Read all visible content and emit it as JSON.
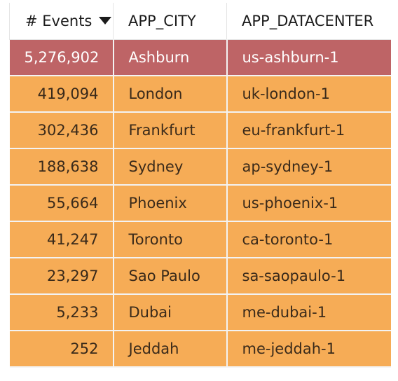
{
  "columns": [
    "# Events",
    "APP_CITY",
    "APP_DATACENTER"
  ],
  "rows": [
    {
      "events": "5,276,902",
      "city": "Ashburn",
      "datacenter": "us-ashburn-1"
    },
    {
      "events": "419,094",
      "city": "London",
      "datacenter": "uk-london-1"
    },
    {
      "events": "302,436",
      "city": "Frankfurt",
      "datacenter": "eu-frankfurt-1"
    },
    {
      "events": "188,638",
      "city": "Sydney",
      "datacenter": "ap-sydney-1"
    },
    {
      "events": "55,664",
      "city": "Phoenix",
      "datacenter": "us-phoenix-1"
    },
    {
      "events": "41,247",
      "city": "Toronto",
      "datacenter": "ca-toronto-1"
    },
    {
      "events": "23,297",
      "city": "Sao Paulo",
      "datacenter": "sa-saopaulo-1"
    },
    {
      "events": "5,233",
      "city": "Dubai",
      "datacenter": "me-dubai-1"
    },
    {
      "events": "252",
      "city": "Jeddah",
      "datacenter": "me-jeddah-1"
    }
  ],
  "sort": {
    "column": "# Events",
    "direction": "descending",
    "icon": "sort-down-icon"
  },
  "colors": {
    "highlight_row": "#be6466",
    "row": "#f6ac56"
  }
}
